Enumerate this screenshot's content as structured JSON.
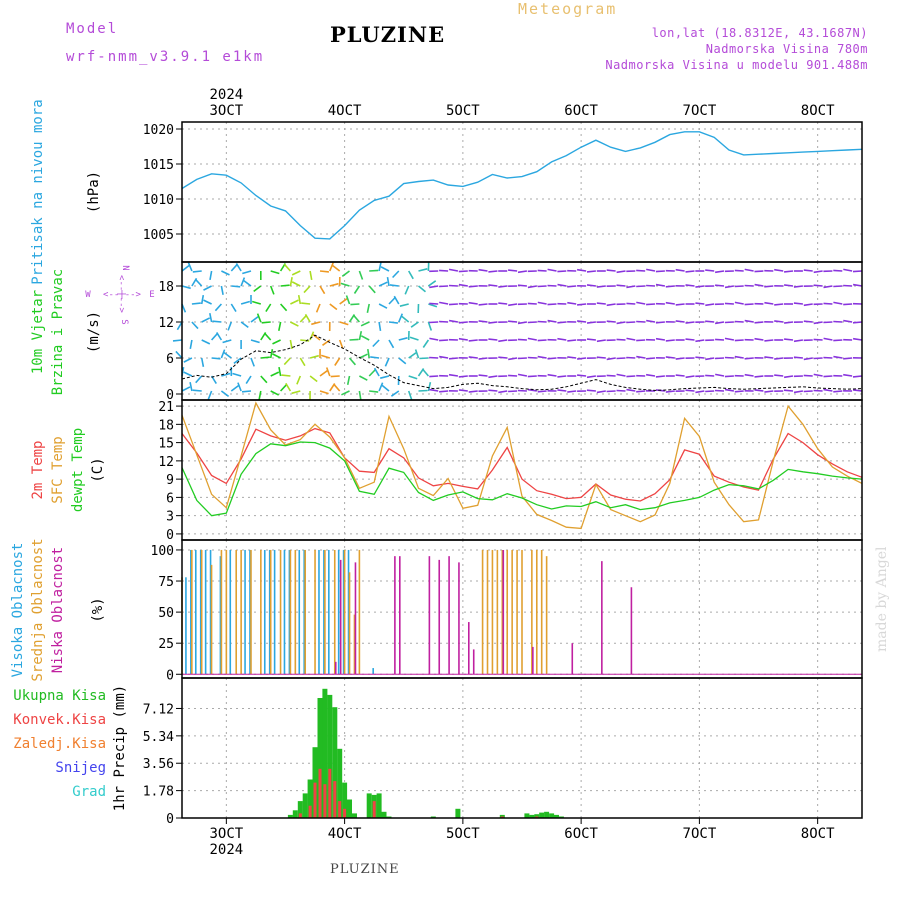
{
  "header": {
    "model_label": "Model",
    "model_name": "wrf-nmm_v3.9.1 e1km",
    "station": "PLUZINE",
    "meteogram": "Meteogram",
    "coords": "lon,lat (18.8312E, 43.1687N)",
    "elevation": "Nadmorska Visina 780m",
    "model_elevation": "Nadmorska Visina u modelu 901.488m"
  },
  "footer": {
    "station": "PLUZINE",
    "credit": "made by Angel"
  },
  "time_axis": {
    "year": "2024",
    "ticks": [
      "3OCT",
      "4OCT",
      "5OCT",
      "6OCT",
      "7OCT",
      "8OCT"
    ],
    "start_hour": -9,
    "end_hour": 129
  },
  "colors": {
    "pressure": "#2ba7e0",
    "temp2m": "#ee4444",
    "sfc": "#e0a030",
    "dewpt": "#22cc22",
    "high": "#2ba7e0",
    "mid": "#e0a030",
    "low": "#c020a0",
    "precip": "#22bb22",
    "conv": "#ee4444",
    "frozen": "#f08030",
    "snow": "#4444ee",
    "hail": "#33cccc",
    "wind_label": "#22cc22",
    "wind_compass": "#b44bd8"
  },
  "chart_data": [
    {
      "type": "line",
      "panel": "pressure",
      "ylabel_lines": [
        "Pritisak na nivou mora"
      ],
      "unit": "(hPa)",
      "yticks": [
        1005,
        1010,
        1015,
        1020
      ],
      "ylim": [
        1001,
        1021
      ],
      "grid": true,
      "series": [
        {
          "x": [
            -9,
            -6,
            -3,
            0,
            3,
            6,
            9,
            12,
            15,
            18,
            21,
            24,
            27,
            30,
            33,
            36,
            39,
            42,
            45,
            48,
            51,
            54,
            57,
            60,
            63,
            66,
            69,
            72,
            75,
            78,
            81,
            84,
            87,
            90,
            93,
            96,
            99,
            102,
            105,
            108,
            111,
            114,
            117,
            120,
            123,
            126,
            129
          ],
          "values": [
            1011.5,
            1012.8,
            1013.6,
            1013.4,
            1012.3,
            1010.5,
            1009,
            1008.3,
            1006.2,
            1004.4,
            1004.3,
            1006.2,
            1008.4,
            1009.8,
            1010.4,
            1012.2,
            1012.5,
            1012.7,
            1012.0,
            1011.8,
            1012.4,
            1013.5,
            1013.0,
            1013.2,
            1013.9,
            1015.3,
            1016.2,
            1017.4,
            1018.4,
            1017.4,
            1016.8,
            1017.3,
            1018.1,
            1019.2,
            1019.6,
            1019.6,
            1018.8,
            1017.0,
            1016.3,
            1016.4,
            1016.5,
            1016.6,
            1016.7,
            1016.8,
            1016.9,
            1017.0,
            1017.1
          ]
        }
      ]
    },
    {
      "type": "line",
      "panel": "wind",
      "ylabel_lines": [
        "10m Vjetar",
        "Brzina i Pravac"
      ],
      "unit": "(m/s)",
      "compass": [
        "N",
        "W",
        "E",
        "S",
        "<--|-->"
      ],
      "yticks": [
        0,
        6,
        12,
        18
      ],
      "ylim": [
        -1,
        22
      ],
      "grid": true,
      "series": [
        {
          "x": [
            -9,
            -6,
            -3,
            0,
            3,
            6,
            9,
            12,
            15,
            18,
            21,
            24,
            27,
            30,
            33,
            36,
            39,
            42,
            45,
            48,
            51,
            54,
            57,
            60,
            63,
            66,
            69,
            72,
            75,
            78,
            81,
            84,
            87,
            90,
            93,
            96,
            99,
            102,
            105,
            108,
            111,
            114,
            117,
            120,
            123,
            126,
            129
          ],
          "values": [
            2.5,
            3.1,
            2.8,
            3.4,
            5.8,
            7.2,
            6.9,
            7.4,
            8.2,
            9.8,
            8.6,
            7.5,
            6.1,
            4.8,
            3.2,
            1.9,
            1.4,
            0.9,
            1.1,
            1.6,
            1.8,
            1.4,
            1.2,
            0.9,
            0.7,
            0.8,
            1.2,
            1.8,
            2.4,
            1.6,
            1.1,
            0.8,
            0.6,
            0.7,
            0.9,
            1.0,
            1.1,
            0.9,
            0.8,
            0.9,
            1.0,
            1.1,
            1.2,
            1.0,
            0.9,
            0.8,
            0.9
          ]
        }
      ]
    },
    {
      "type": "line",
      "panel": "temperature",
      "ylabel_lines": [
        "2m Temp",
        "SFC Temp",
        "dewpt Temp"
      ],
      "unit": "(C)",
      "yticks": [
        0,
        3,
        6,
        9,
        12,
        15,
        18,
        21
      ],
      "ylim": [
        -1,
        22
      ],
      "grid": true,
      "x": [
        -9,
        -6,
        -3,
        0,
        3,
        6,
        9,
        12,
        15,
        18,
        21,
        24,
        27,
        30,
        33,
        36,
        39,
        42,
        45,
        48,
        51,
        54,
        57,
        60,
        63,
        66,
        69,
        72,
        75,
        78,
        81,
        84,
        87,
        90,
        93,
        96,
        99,
        102,
        105,
        108,
        111,
        114,
        117,
        120,
        123,
        126,
        129
      ],
      "series": [
        {
          "name": "2m Temp",
          "values": [
            16.5,
            13.3,
            9.6,
            8.3,
            12.3,
            17.2,
            16.1,
            15.4,
            16.1,
            17.3,
            16.6,
            12.5,
            10.3,
            10.1,
            14.0,
            12.5,
            9.2,
            7.9,
            8.3,
            7.8,
            7.4,
            10.5,
            14.2,
            9.0,
            7.1,
            6.5,
            5.8,
            6.0,
            8.2,
            6.4,
            5.7,
            5.4,
            6.6,
            8.9,
            13.8,
            13.1,
            9.5,
            8.5,
            7.7,
            7.2,
            12.3,
            16.5,
            15.0,
            13.0,
            11.5,
            10.2,
            9.3
          ]
        },
        {
          "name": "SFC Temp",
          "values": [
            19.5,
            13.0,
            6.5,
            4.3,
            12.8,
            21.5,
            17.1,
            14.6,
            15.5,
            18.0,
            15.9,
            12.5,
            7.5,
            8.5,
            19.3,
            14.0,
            7.5,
            6.3,
            9.1,
            4.2,
            4.7,
            12.8,
            17.5,
            6.2,
            3.2,
            2.2,
            1.1,
            0.9,
            8.1,
            4.0,
            3.0,
            2.0,
            3.1,
            8.3,
            19.0,
            16.0,
            8.5,
            4.8,
            2.0,
            2.3,
            12.0,
            21.0,
            18.0,
            14.0,
            11.0,
            9.5,
            8.3
          ]
        },
        {
          "name": "dewpt Temp",
          "values": [
            10.9,
            5.5,
            3.0,
            3.4,
            9.8,
            13.2,
            14.8,
            14.5,
            15.1,
            15.0,
            14.1,
            12.0,
            7.0,
            6.5,
            10.8,
            10.1,
            6.8,
            5.5,
            6.4,
            6.9,
            5.8,
            5.6,
            6.6,
            5.9,
            4.8,
            4.1,
            4.6,
            4.5,
            5.3,
            4.3,
            4.8,
            4.0,
            4.3,
            5.1,
            5.5,
            6.0,
            7.2,
            8.1,
            7.9,
            7.4,
            8.8,
            10.6,
            10.2,
            9.9,
            9.5,
            9.2,
            9.0
          ]
        }
      ]
    },
    {
      "type": "bar",
      "panel": "clouds",
      "ylabel_lines": [
        "Visoka Oblacnost",
        "Srednja Oblacnost",
        "Niska Oblacnost"
      ],
      "unit": "(%)",
      "yticks": [
        0,
        25,
        50,
        75,
        100
      ],
      "ylim": [
        -3,
        108
      ],
      "grid": true,
      "series": [
        {
          "name": "Visoka Oblacnost",
          "x": [
            -8,
            -7,
            -6,
            -5,
            -4,
            -3,
            -2,
            -1,
            1,
            4,
            5,
            8,
            9,
            10,
            12,
            13,
            15,
            16,
            19,
            20,
            21,
            23,
            24,
            25,
            30
          ],
          "values": [
            78,
            100,
            100,
            100,
            100,
            100,
            0,
            95,
            100,
            100,
            100,
            100,
            100,
            100,
            100,
            100,
            100,
            100,
            100,
            100,
            100,
            100,
            100,
            100,
            5
          ]
        },
        {
          "name": "Srednja Oblacnost",
          "x": [
            -9,
            -7,
            -5,
            -3,
            -1,
            0,
            2,
            3,
            5,
            7,
            9,
            11,
            13,
            14,
            16,
            18,
            20,
            22,
            24,
            25,
            26,
            27,
            52,
            53,
            54,
            55,
            56,
            57,
            58,
            59,
            60,
            62,
            63,
            64,
            65
          ],
          "values": [
            78,
            100,
            100,
            88,
            100,
            100,
            100,
            100,
            100,
            100,
            100,
            100,
            100,
            100,
            100,
            100,
            100,
            100,
            100,
            82,
            48,
            100,
            100,
            100,
            100,
            100,
            100,
            100,
            100,
            100,
            100,
            100,
            100,
            100,
            95
          ]
        },
        {
          "name": "Niska Oblacnost",
          "x": [
            22,
            23,
            26,
            34,
            35,
            41,
            43,
            45,
            47,
            49,
            50,
            56,
            62,
            70,
            76,
            82
          ],
          "values": [
            10,
            92,
            90,
            95,
            95,
            95,
            92,
            95,
            90,
            42,
            20,
            100,
            22,
            25,
            91,
            70
          ]
        }
      ]
    },
    {
      "type": "bar",
      "panel": "precipitation",
      "ylabel_lines": [
        "1hr Precip (mm)"
      ],
      "legend": [
        "Ukupna Kisa",
        "Konvek.Kisa",
        "Zaledj.Kisa",
        "Snijeg",
        "Grad"
      ],
      "yticks": [
        "0",
        "1.78",
        "3.56",
        "5.34",
        "7.12"
      ],
      "ylim": [
        0,
        9.1
      ],
      "grid": true,
      "series": [
        {
          "name": "Ukupna Kisa",
          "x": [
            13,
            14,
            15,
            16,
            17,
            18,
            19,
            20,
            21,
            22,
            23,
            24,
            25,
            26,
            29,
            30,
            31,
            32,
            33,
            42,
            47,
            56,
            61,
            62,
            63,
            64,
            65,
            66,
            67,
            68
          ],
          "values": [
            0.2,
            0.5,
            1.1,
            1.6,
            2.5,
            4.6,
            7.8,
            8.4,
            8.0,
            7.2,
            4.5,
            2.3,
            1.2,
            0.3,
            1.6,
            1.5,
            1.6,
            0.4,
            0.1,
            0.1,
            0.6,
            0.2,
            0.3,
            0.2,
            0.25,
            0.35,
            0.4,
            0.3,
            0.2,
            0.1
          ]
        },
        {
          "name": "Konvek.Kisa",
          "x": [
            15,
            17,
            18,
            19,
            20,
            21,
            22,
            23,
            24,
            30,
            56,
            63
          ],
          "values": [
            0.3,
            0.8,
            2.3,
            3.2,
            2.2,
            3.2,
            2.4,
            1.1,
            0.6,
            1.1,
            0.1,
            0.1
          ]
        }
      ]
    }
  ]
}
